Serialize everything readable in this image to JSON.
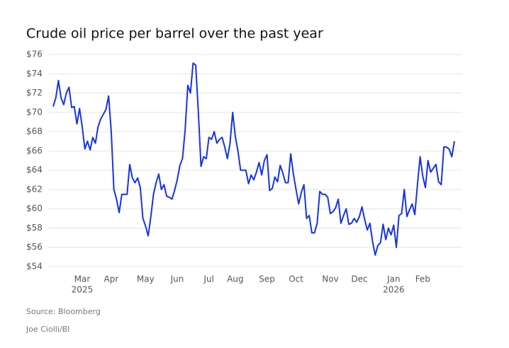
{
  "chart_data": {
    "type": "line",
    "title": "Crude oil price per barrel over the past year",
    "source": "Source: Bloomberg",
    "credit": "Joe Ciolli/BI",
    "color": "#1733e8",
    "grid": true,
    "ylim": [
      54,
      76
    ],
    "yticks": [
      {
        "value": 54,
        "label": "$54"
      },
      {
        "value": 56,
        "label": "$56"
      },
      {
        "value": 58,
        "label": "$58"
      },
      {
        "value": 60,
        "label": "$60"
      },
      {
        "value": 62,
        "label": "$62"
      },
      {
        "value": 64,
        "label": "$64"
      },
      {
        "value": 66,
        "label": "$66"
      },
      {
        "value": 68,
        "label": "$68"
      },
      {
        "value": 70,
        "label": "$70"
      },
      {
        "value": 72,
        "label": "$72"
      },
      {
        "value": 74,
        "label": "$74"
      },
      {
        "value": 76,
        "label": "$76"
      }
    ],
    "categories": [
      null,
      null,
      null,
      null,
      null,
      null,
      null,
      null,
      null,
      null,
      null,
      "Mar",
      null,
      null,
      null,
      null,
      null,
      null,
      null,
      null,
      null,
      null,
      "Apr",
      null,
      null,
      null,
      null,
      null,
      null,
      null,
      null,
      null,
      null,
      null,
      null,
      "May",
      null,
      null,
      null,
      null,
      null,
      null,
      null,
      null,
      null,
      null,
      null,
      "Jun",
      null,
      null,
      null,
      null,
      null,
      null,
      null,
      null,
      null,
      null,
      null,
      "Jul",
      null,
      null,
      null,
      null,
      null,
      null,
      null,
      null,
      null,
      "Aug",
      null,
      null,
      null,
      null,
      null,
      null,
      null,
      null,
      null,
      null,
      null,
      "Sep",
      null,
      null,
      null,
      null,
      null,
      null,
      null,
      null,
      null,
      null,
      "Oct",
      null,
      null,
      null,
      null,
      null,
      null,
      null,
      null,
      null,
      null,
      null,
      null,
      "Nov",
      null,
      null,
      null,
      null,
      null,
      null,
      null,
      null,
      null,
      null,
      "Dec",
      null,
      null,
      null,
      null,
      null,
      null,
      null,
      null,
      null,
      null,
      null,
      null,
      "Jan",
      null,
      null,
      null,
      null,
      null,
      null,
      null,
      null,
      null,
      null,
      "Feb",
      null,
      null,
      null,
      null,
      null,
      null,
      null,
      null,
      null,
      null,
      null,
      null
    ],
    "category_years": [
      null,
      null,
      null,
      null,
      null,
      null,
      null,
      null,
      null,
      null,
      null,
      "2025",
      null,
      null,
      null,
      null,
      null,
      null,
      null,
      null,
      null,
      null,
      null,
      null,
      null,
      null,
      null,
      null,
      null,
      null,
      null,
      null,
      null,
      null,
      null,
      null,
      null,
      null,
      null,
      null,
      null,
      null,
      null,
      null,
      null,
      null,
      null,
      null,
      null,
      null,
      null,
      null,
      null,
      null,
      null,
      null,
      null,
      null,
      null,
      null,
      null,
      null,
      null,
      null,
      null,
      null,
      null,
      null,
      null,
      null,
      null,
      null,
      null,
      null,
      null,
      null,
      null,
      null,
      null,
      null,
      null,
      null,
      null,
      null,
      null,
      null,
      null,
      null,
      null,
      null,
      null,
      null,
      null,
      null,
      null,
      null,
      null,
      null,
      null,
      null,
      null,
      null,
      null,
      null,
      null,
      null,
      null,
      null,
      null,
      null,
      null,
      null,
      null,
      null,
      null,
      null,
      null,
      null,
      null,
      null,
      null,
      null,
      null,
      null,
      null,
      null,
      null,
      null,
      null,
      "2026",
      null,
      null,
      null,
      null,
      null,
      null,
      null,
      null,
      null,
      null,
      null,
      null,
      null,
      null,
      null,
      null,
      null,
      null,
      null,
      null,
      null,
      null,
      null
    ],
    "values": [
      70.6,
      71.5,
      73.3,
      71.5,
      70.8,
      72.0,
      72.6,
      70.5,
      70.6,
      68.8,
      70.4,
      68.5,
      66.2,
      67.0,
      66.1,
      67.4,
      66.8,
      68.5,
      69.3,
      69.8,
      70.3,
      71.7,
      68.0,
      62.0,
      61.0,
      59.6,
      61.5,
      61.5,
      61.5,
      64.6,
      63.2,
      62.7,
      63.2,
      62.2,
      59.0,
      58.2,
      57.2,
      59.2,
      61.5,
      62.7,
      63.6,
      62.0,
      62.5,
      61.3,
      61.2,
      61.0,
      61.9,
      63.0,
      64.5,
      65.2,
      68.2,
      72.8,
      72.0,
      75.1,
      74.9,
      70.0,
      64.4,
      65.4,
      65.2,
      67.4,
      67.2,
      68.0,
      66.8,
      67.2,
      67.4,
      66.4,
      65.2,
      66.8,
      70.0,
      67.5,
      66.0,
      64.0,
      64.0,
      64.0,
      62.6,
      63.5,
      63.0,
      63.8,
      64.8,
      63.5,
      65.0,
      65.6,
      61.9,
      62.1,
      63.3,
      62.8,
      64.5,
      63.7,
      62.7,
      62.7,
      65.7,
      63.6,
      62.0,
      60.5,
      61.7,
      62.5,
      59.0,
      59.3,
      57.5,
      57.5,
      58.5,
      61.8,
      61.5,
      61.5,
      61.2,
      59.5,
      59.7,
      60.1,
      61.0,
      58.5,
      59.3,
      60.0,
      58.4,
      58.5,
      59.0,
      58.6,
      59.2,
      60.2,
      58.9,
      57.8,
      58.5,
      56.6,
      55.2,
      56.2,
      56.5,
      58.4,
      56.8,
      58.0,
      57.3,
      58.3,
      56.0,
      59.3,
      59.5,
      62.0,
      59.2,
      59.9,
      60.5,
      59.4,
      62.5,
      65.4,
      63.4,
      62.2,
      65.0,
      63.8,
      64.2,
      64.6,
      62.8,
      62.5,
      66.4,
      66.4,
      66.2,
      65.4,
      67.0
    ]
  }
}
